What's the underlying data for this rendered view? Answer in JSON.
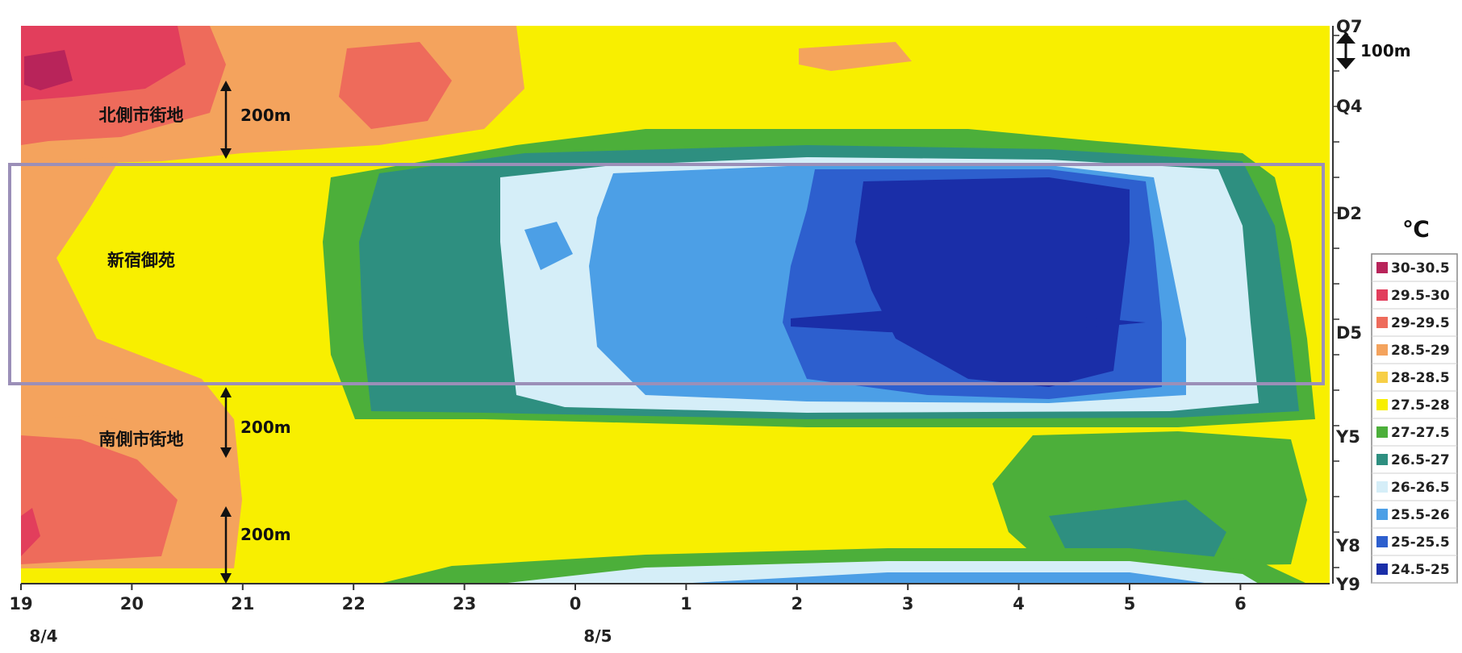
{
  "chart_data": {
    "type": "heatmap",
    "title": "",
    "x_ticks": [
      "19",
      "20",
      "21",
      "22",
      "23",
      "0",
      "1",
      "2",
      "3",
      "4",
      "5",
      "6"
    ],
    "date_labels": [
      {
        "at": "19",
        "text": "8/4"
      },
      {
        "at": "0",
        "text": "8/5"
      }
    ],
    "y_labels": [
      "Q7",
      "Q4",
      "D2",
      "D5",
      "Y5",
      "Y8",
      "Y9"
    ],
    "legend": {
      "title": "℃",
      "entries": [
        {
          "label": "30-30.5",
          "color": "#b8245a"
        },
        {
          "label": "29.5-30",
          "color": "#e23e5c"
        },
        {
          "label": "29-29.5",
          "color": "#ee6b5b"
        },
        {
          "label": "28.5-29",
          "color": "#f4a35d"
        },
        {
          "label": "28-28.5",
          "color": "#f7cf47"
        },
        {
          "label": "27.5-28",
          "color": "#f8ef00"
        },
        {
          "label": "27-27.5",
          "color": "#4caf3a"
        },
        {
          "label": "26.5-27",
          "color": "#2e8f80"
        },
        {
          "label": "26-26.5",
          "color": "#d5eef8"
        },
        {
          "label": "25.5-26",
          "color": "#4c9fe6"
        },
        {
          "label": "25-25.5",
          "color": "#2d5fce"
        },
        {
          "label": "24.5-25",
          "color": "#1a2ea8"
        }
      ]
    },
    "annotations": [
      {
        "text": "北側市街地",
        "zone": "north"
      },
      {
        "text": "新宿御苑",
        "zone": "park"
      },
      {
        "text": "南側市街地",
        "zone": "south"
      }
    ],
    "distance_labels": [
      "200m",
      "200m",
      "200m",
      "100m"
    ],
    "highlight_zone": {
      "label": "新宿御苑",
      "from": "D2",
      "to": "D5",
      "color": "#9b8fb8"
    }
  }
}
